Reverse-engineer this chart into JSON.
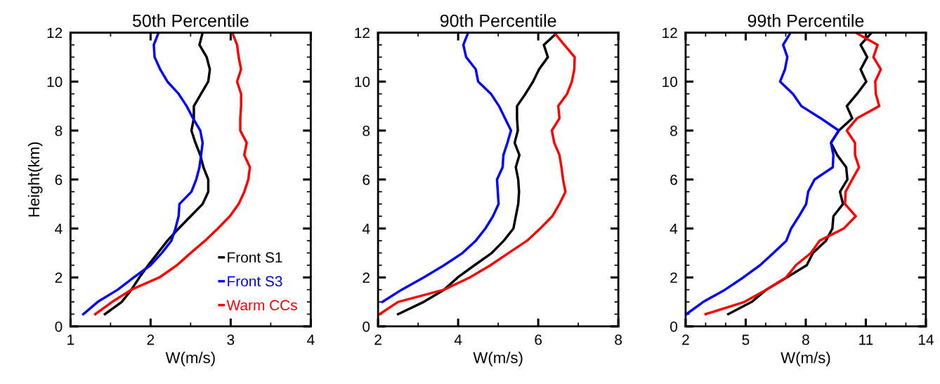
{
  "chart_data": [
    {
      "type": "line",
      "title": "50th Percentile",
      "xlabel": "W(m/s)",
      "ylabel": "Height(km)",
      "xlim": [
        1,
        4
      ],
      "ylim": [
        0,
        12
      ],
      "xticks": [
        1,
        {
          "value": 1.5,
          "label": null
        },
        2,
        {
          "value": 2.5,
          "label": null
        },
        3,
        {
          "value": 3.5,
          "label": null
        },
        4
      ],
      "yticks": [
        0,
        {
          "value": 0.5,
          "label": null
        },
        {
          "value": 1,
          "label": null
        },
        {
          "value": 1.5,
          "label": null
        },
        2,
        {
          "value": 2.5,
          "label": null
        },
        {
          "value": 3,
          "label": null
        },
        {
          "value": 3.5,
          "label": null
        },
        4,
        {
          "value": 4.5,
          "label": null
        },
        {
          "value": 5,
          "label": null
        },
        {
          "value": 5.5,
          "label": null
        },
        6,
        {
          "value": 6.5,
          "label": null
        },
        {
          "value": 7,
          "label": null
        },
        {
          "value": 7.5,
          "label": null
        },
        8,
        {
          "value": 8.5,
          "label": null
        },
        {
          "value": 9,
          "label": null
        },
        {
          "value": 9.5,
          "label": null
        },
        10,
        {
          "value": 10.5,
          "label": null
        },
        {
          "value": 11,
          "label": null
        },
        {
          "value": 11.5,
          "label": null
        },
        12
      ],
      "legend": "bottom right",
      "grid": false,
      "marker": "none",
      "line_style": "solid",
      "series": [
        {
          "name": "Front S1",
          "color": "#000000",
          "x": [
            1.43,
            1.64,
            1.76,
            1.86,
            1.97,
            2.09,
            2.21,
            2.35,
            2.5,
            2.65,
            2.72,
            2.72,
            2.66,
            2.62,
            2.56,
            2.51,
            2.54,
            2.54,
            2.63,
            2.72,
            2.74,
            2.7,
            2.61,
            2.65
          ],
          "values": [
            0.5,
            1,
            1.5,
            2,
            2.5,
            3,
            3.5,
            4,
            4.5,
            5,
            5.5,
            6,
            6.5,
            7,
            7.5,
            8,
            8.5,
            9,
            9.5,
            10,
            10.5,
            11,
            11.5,
            12
          ]
        },
        {
          "name": "Front S3",
          "color": "#0000ff",
          "x": [
            1.16,
            1.34,
            1.59,
            1.79,
            2.0,
            2.14,
            2.26,
            2.31,
            2.35,
            2.36,
            2.51,
            2.57,
            2.61,
            2.63,
            2.65,
            2.62,
            2.53,
            2.45,
            2.35,
            2.21,
            2.12,
            2.05,
            2.04,
            2.1
          ],
          "values": [
            0.5,
            1,
            1.5,
            2,
            2.5,
            3,
            3.5,
            4,
            4.5,
            5,
            5.5,
            6,
            6.5,
            7,
            7.5,
            8,
            8.5,
            9,
            9.5,
            10,
            10.5,
            11,
            11.5,
            12
          ]
        },
        {
          "name": "Warm CCs",
          "color": "#ff0000",
          "x": [
            1.31,
            1.52,
            1.76,
            2.11,
            2.33,
            2.5,
            2.68,
            2.84,
            2.99,
            3.1,
            3.17,
            3.22,
            3.24,
            3.17,
            3.2,
            3.12,
            3.12,
            3.13,
            3.13,
            3.08,
            3.13,
            3.1,
            3.08,
            3.02
          ],
          "values": [
            0.5,
            1,
            1.5,
            2,
            2.5,
            3,
            3.5,
            4,
            4.5,
            5,
            5.5,
            6,
            6.5,
            7,
            7.5,
            8,
            8.5,
            9,
            9.5,
            10,
            10.5,
            11,
            11.5,
            12
          ]
        }
      ]
    },
    {
      "type": "line",
      "title": "90th Percentile",
      "xlabel": "W(m/s)",
      "xlim": [
        2,
        8
      ],
      "ylim": [
        0,
        12
      ],
      "xticks": [
        2,
        {
          "value": 3,
          "label": null
        },
        4,
        {
          "value": 5,
          "label": null
        },
        6,
        {
          "value": 7,
          "label": null
        },
        8
      ],
      "yticks": [
        0,
        {
          "value": 0.5,
          "label": null
        },
        {
          "value": 1,
          "label": null
        },
        {
          "value": 1.5,
          "label": null
        },
        2,
        {
          "value": 2.5,
          "label": null
        },
        {
          "value": 3,
          "label": null
        },
        {
          "value": 3.5,
          "label": null
        },
        4,
        {
          "value": 4.5,
          "label": null
        },
        {
          "value": 5,
          "label": null
        },
        {
          "value": 5.5,
          "label": null
        },
        6,
        {
          "value": 6.5,
          "label": null
        },
        {
          "value": 7,
          "label": null
        },
        {
          "value": 7.5,
          "label": null
        },
        8,
        {
          "value": 8.5,
          "label": null
        },
        {
          "value": 9,
          "label": null
        },
        {
          "value": 9.5,
          "label": null
        },
        10,
        {
          "value": 10.5,
          "label": null
        },
        {
          "value": 11,
          "label": null
        },
        {
          "value": 11.5,
          "label": null
        },
        12
      ],
      "grid": false,
      "marker": "none",
      "line_style": "solid",
      "series": [
        {
          "color": "#000000",
          "x": [
            2.5,
            3.14,
            3.65,
            3.99,
            4.41,
            4.84,
            5.14,
            5.38,
            5.44,
            5.5,
            5.52,
            5.5,
            5.44,
            5.53,
            5.41,
            5.49,
            5.47,
            5.47,
            5.68,
            5.87,
            6.02,
            6.24,
            6.14,
            6.47
          ],
          "values": [
            0.5,
            1,
            1.5,
            2,
            2.5,
            3,
            3.5,
            4,
            4.5,
            5,
            5.5,
            6,
            6.5,
            7,
            7.5,
            8,
            8.5,
            9,
            9.5,
            10,
            10.5,
            11,
            11.5,
            12
          ]
        },
        {
          "color": "#0000ff",
          "x": [
            2.11,
            2.59,
            3.14,
            3.65,
            4.11,
            4.44,
            4.68,
            4.87,
            5.01,
            4.99,
            4.97,
            5.11,
            5.13,
            5.23,
            5.32,
            5.17,
            5.02,
            4.82,
            4.5,
            4.44,
            4.2,
            4.13,
            4.25
          ],
          "values": [
            1,
            1.5,
            2,
            2.5,
            3,
            3.5,
            4,
            4.5,
            5,
            5.5,
            6,
            6.5,
            7,
            7.5,
            8,
            8.5,
            9,
            9.5,
            10,
            10.5,
            11,
            11.5,
            12
          ]
        },
        {
          "color": "#ff0000",
          "x": [
            2.04,
            2.5,
            3.65,
            4.29,
            4.81,
            5.26,
            5.72,
            6.05,
            6.35,
            6.53,
            6.68,
            6.62,
            6.58,
            6.53,
            6.4,
            6.34,
            6.53,
            6.5,
            6.72,
            6.84,
            6.9,
            6.91,
            6.65,
            6.4
          ],
          "values": [
            0.5,
            1,
            1.5,
            2,
            2.5,
            3,
            3.5,
            4,
            4.5,
            5,
            5.5,
            6,
            6.5,
            7,
            7.5,
            8,
            8.5,
            9,
            9.5,
            10,
            10.5,
            11,
            11.5,
            12
          ]
        }
      ]
    },
    {
      "type": "line",
      "title": "99th Percentile",
      "xlabel": "W(m/s)",
      "xlim": [
        2,
        14
      ],
      "ylim": [
        0,
        12
      ],
      "xticks": [
        2,
        {
          "value": 3,
          "label": null
        },
        {
          "value": 4,
          "label": null
        },
        5,
        {
          "value": 6,
          "label": null
        },
        {
          "value": 7,
          "label": null
        },
        8,
        {
          "value": 9,
          "label": null
        },
        {
          "value": 10,
          "label": null
        },
        11,
        {
          "value": 12,
          "label": null
        },
        {
          "value": 13,
          "label": null
        },
        14
      ],
      "yticks": [
        0,
        {
          "value": 0.5,
          "label": null
        },
        {
          "value": 1,
          "label": null
        },
        {
          "value": 1.5,
          "label": null
        },
        2,
        {
          "value": 2.5,
          "label": null
        },
        {
          "value": 3,
          "label": null
        },
        {
          "value": 3.5,
          "label": null
        },
        4,
        {
          "value": 4.5,
          "label": null
        },
        {
          "value": 5,
          "label": null
        },
        {
          "value": 5.5,
          "label": null
        },
        6,
        {
          "value": 6.5,
          "label": null
        },
        {
          "value": 7,
          "label": null
        },
        {
          "value": 7.5,
          "label": null
        },
        8,
        {
          "value": 8.5,
          "label": null
        },
        {
          "value": 9,
          "label": null
        },
        {
          "value": 9.5,
          "label": null
        },
        10,
        {
          "value": 10.5,
          "label": null
        },
        {
          "value": 11,
          "label": null
        },
        {
          "value": 11.5,
          "label": null
        },
        12
      ],
      "grid": false,
      "marker": "none",
      "line_style": "solid",
      "series": [
        {
          "color": "#000000",
          "x": [
            4.13,
            5.3,
            6.03,
            7.05,
            8.05,
            8.36,
            9.01,
            9.33,
            9.38,
            9.86,
            9.71,
            10.08,
            10.02,
            9.57,
            9.26,
            9.65,
            10.32,
            10.05,
            10.56,
            11.02,
            10.74,
            11.07,
            10.74,
            11.29
          ],
          "values": [
            0.5,
            1,
            1.5,
            2,
            2.5,
            3,
            3.5,
            4,
            4.5,
            5,
            5.5,
            6,
            6.5,
            7,
            7.5,
            8,
            8.5,
            9,
            9.5,
            10,
            10.5,
            11,
            11.5,
            12
          ]
        },
        {
          "color": "#0000ff",
          "x": [
            2.04,
            2.88,
            3.97,
            4.88,
            5.72,
            6.39,
            7.03,
            7.27,
            7.66,
            8.02,
            8.12,
            8.44,
            9.35,
            9.38,
            9.26,
            9.65,
            8.75,
            7.78,
            7.36,
            6.72,
            6.96,
            7.08,
            6.87,
            7.24
          ],
          "values": [
            0.5,
            1,
            1.5,
            2,
            2.5,
            3,
            3.5,
            4,
            4.5,
            5,
            5.5,
            6,
            6.5,
            7,
            7.5,
            8,
            8.5,
            9,
            9.5,
            10,
            10.5,
            11,
            11.5,
            12
          ]
        },
        {
          "color": "#ff0000",
          "x": [
            3.0,
            4.94,
            6.03,
            7.02,
            7.51,
            8.26,
            8.69,
            9.9,
            10.5,
            9.96,
            9.99,
            10.32,
            10.66,
            10.46,
            10.46,
            10.05,
            10.56,
            11.67,
            11.5,
            11.47,
            11.75,
            11.38,
            11.59,
            10.5
          ],
          "values": [
            0.5,
            1,
            1.5,
            2,
            2.5,
            3,
            3.5,
            4,
            4.5,
            5,
            5.5,
            6,
            6.5,
            7,
            7.5,
            8,
            8.5,
            9,
            9.5,
            10,
            10.5,
            11,
            11.5,
            12
          ]
        }
      ]
    }
  ]
}
